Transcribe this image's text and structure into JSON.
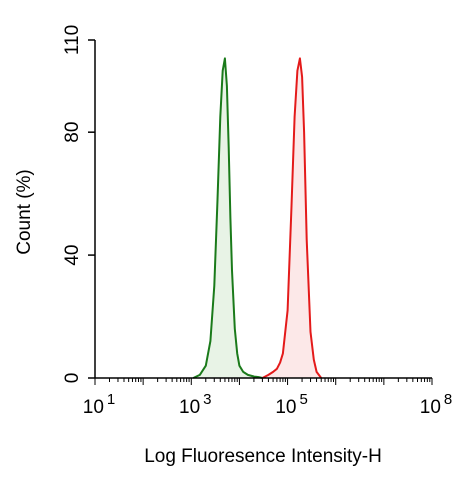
{
  "chart_data": {
    "type": "area",
    "title": "",
    "xlabel": "Log Fluoresence Intensity-H",
    "ylabel": "Count  (%)",
    "x_scale": "log",
    "xlim": [
      10,
      100000000
    ],
    "ylim": [
      0,
      110
    ],
    "x_ticks": [
      {
        "value": 10,
        "base": "10",
        "exp": "1"
      },
      {
        "value": 1000,
        "base": "10",
        "exp": "3"
      },
      {
        "value": 100000,
        "base": "10",
        "exp": "5"
      },
      {
        "value": 100000000,
        "base": "10",
        "exp": "8"
      }
    ],
    "y_ticks": [
      {
        "value": 0,
        "label": "0"
      },
      {
        "value": 40,
        "label": "40"
      },
      {
        "value": 80,
        "label": "80"
      },
      {
        "value": 110,
        "label": "110"
      }
    ],
    "grid": false,
    "legend": "none",
    "series": [
      {
        "color": "#1a7a1a",
        "fill": "#e8f3e6",
        "x": [
          1100,
          1500,
          2000,
          2500,
          3000,
          3500,
          4000,
          4500,
          5000,
          5500,
          6000,
          6500,
          7000,
          8000,
          9000,
          10000,
          12000,
          15000,
          20000,
          25000,
          30000
        ],
        "y": [
          0,
          1,
          4,
          12,
          30,
          58,
          85,
          100,
          104,
          95,
          75,
          52,
          35,
          16,
          8,
          4,
          2,
          1,
          0.5,
          0.3,
          0
        ]
      },
      {
        "color": "#e41a1a",
        "fill": "#fce8e8",
        "x": [
          30000,
          40000,
          50000,
          60000,
          70000,
          80000,
          100000,
          120000,
          140000,
          160000,
          180000,
          200000,
          220000,
          250000,
          300000,
          350000,
          400000,
          500000
        ],
        "y": [
          0,
          1,
          2,
          3,
          5,
          8,
          22,
          55,
          85,
          100,
          104,
          98,
          80,
          45,
          15,
          6,
          2,
          0
        ]
      }
    ]
  }
}
